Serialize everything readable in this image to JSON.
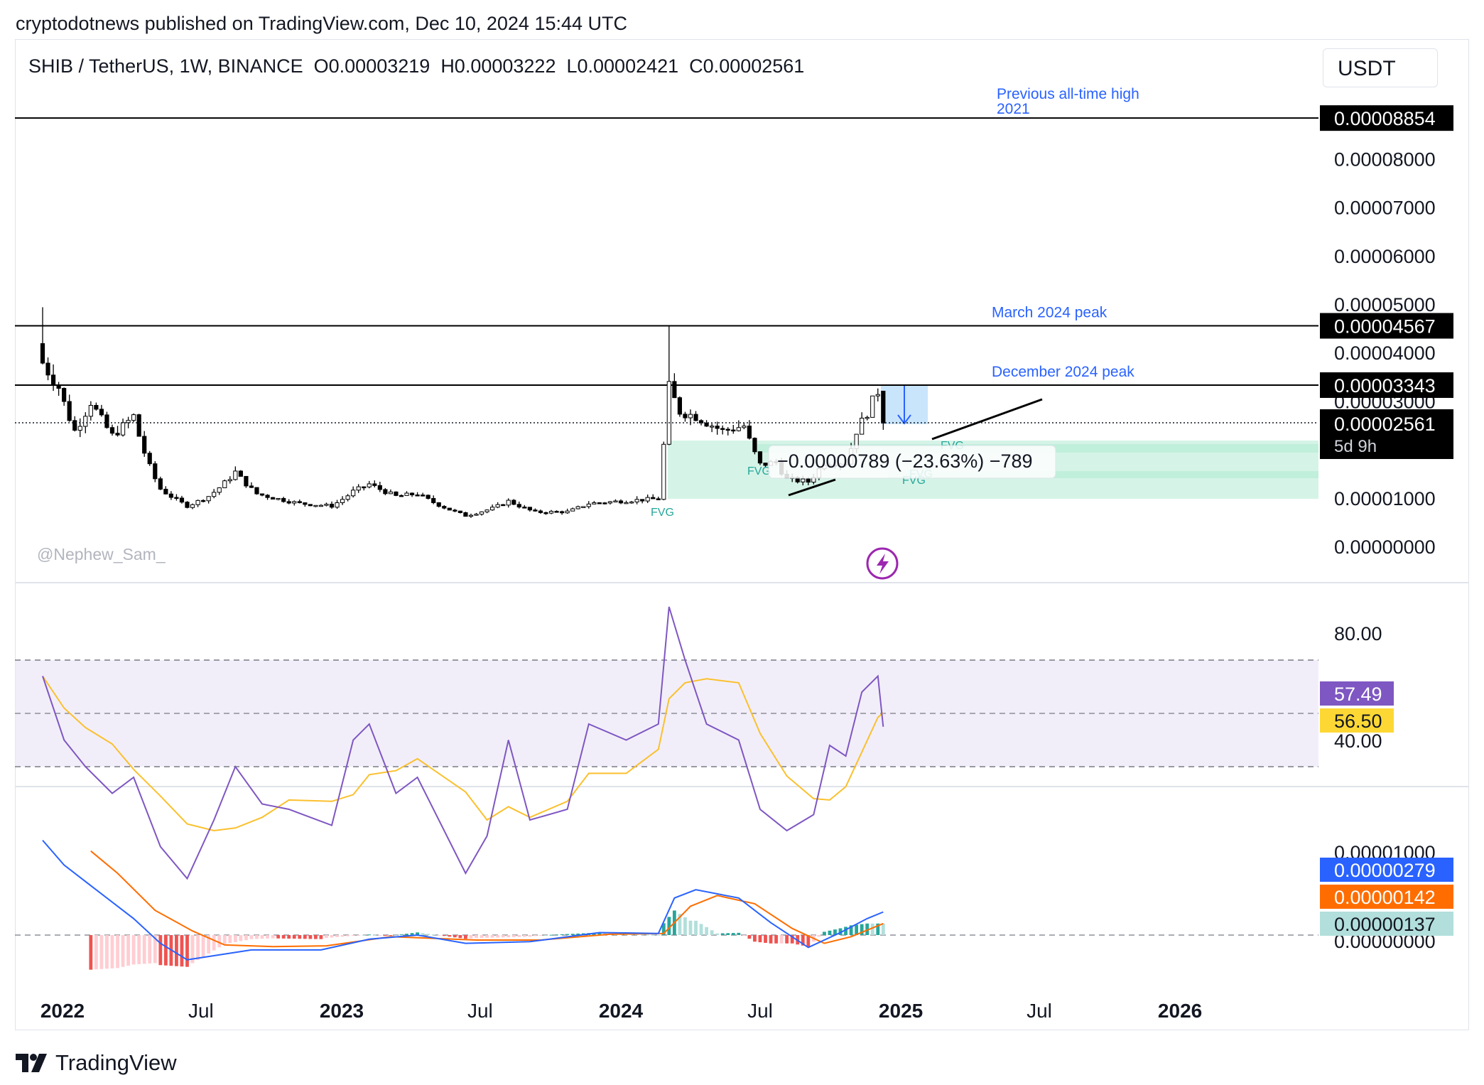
{
  "publisher_line": "cryptodotnews published on TradingView.com, Dec 10, 2024 15:44 UTC",
  "symbol": {
    "pair": "SHIB / TetherUS, 1W, BINANCE",
    "open": "O0.00003219",
    "high": "H0.00003222",
    "low": "L0.00002421",
    "close": "C0.00002561"
  },
  "currency": "USDT",
  "watermark": "@Nephew_Sam_",
  "brand": "TradingView",
  "colors": {
    "up": "#26a69a",
    "down": "#ef5350",
    "rsi": "#7e57c2",
    "rsi_ma": "#fbc02d",
    "macd": "#2962ff",
    "signal": "#ff6d00",
    "fvg": "#b2ebd4",
    "annotation": "#2962ff",
    "hist_up_strong": "#26a69a",
    "hist_up_weak": "#b2dfdb",
    "hist_down_strong": "#ef5350",
    "hist_down_weak": "#ffcdd2"
  },
  "chart_data": [
    {
      "type": "candlestick",
      "timeframe": "1W",
      "x_axis": {
        "labels": [
          "2022",
          "Jul",
          "2023",
          "Jul",
          "2024",
          "Jul",
          "2025",
          "Jul",
          "2026"
        ],
        "bold": [
          "2022",
          "2023",
          "2024",
          "2025",
          "2026"
        ]
      },
      "y_axis": {
        "ticks": [
          "0.00008000",
          "0.00007000",
          "0.00006000",
          "0.00005000",
          "0.00004000",
          "0.00003000",
          "0.00001000",
          "0.00000000"
        ]
      },
      "anchors": {
        "description": "approximate weekly close path (price in USDT)",
        "points": [
          {
            "t": "2021-12-06",
            "v": 3.8e-05
          },
          {
            "t": "2021-12-27",
            "v": 3.3e-05
          },
          {
            "t": "2022-01-17",
            "v": 2.4e-05
          },
          {
            "t": "2022-02-07",
            "v": 3e-05
          },
          {
            "t": "2022-03-07",
            "v": 2.3e-05
          },
          {
            "t": "2022-04-04",
            "v": 2.7e-05
          },
          {
            "t": "2022-05-09",
            "v": 1.2e-05
          },
          {
            "t": "2022-06-13",
            "v": 8.5e-06
          },
          {
            "t": "2022-07-11",
            "v": 1.05e-05
          },
          {
            "t": "2022-08-15",
            "v": 1.55e-05
          },
          {
            "t": "2022-09-12",
            "v": 1.1e-05
          },
          {
            "t": "2022-11-07",
            "v": 9e-06
          },
          {
            "t": "2022-12-19",
            "v": 8.5e-06
          },
          {
            "t": "2023-01-16",
            "v": 1.15e-05
          },
          {
            "t": "2023-02-06",
            "v": 1.3e-05
          },
          {
            "t": "2023-03-13",
            "v": 1.05e-05
          },
          {
            "t": "2023-04-10",
            "v": 1.1e-05
          },
          {
            "t": "2023-06-12",
            "v": 6.5e-06
          },
          {
            "t": "2023-07-17",
            "v": 8e-06
          },
          {
            "t": "2023-08-07",
            "v": 9.5e-06
          },
          {
            "t": "2023-09-11",
            "v": 7.2e-06
          },
          {
            "t": "2023-10-23",
            "v": 7.3e-06
          },
          {
            "t": "2023-11-20",
            "v": 9e-06
          },
          {
            "t": "2024-01-01",
            "v": 9.5e-06
          },
          {
            "t": "2024-02-19",
            "v": 1e-05
          },
          {
            "t": "2024-02-26",
            "v": 2.1e-05
          },
          {
            "t": "2024-03-04",
            "v": 3.3e-05
          },
          {
            "t": "2024-03-18",
            "v": 2.8e-05
          },
          {
            "t": "2024-04-08",
            "v": 2.7e-05
          },
          {
            "t": "2024-05-13",
            "v": 2.4e-05
          },
          {
            "t": "2024-06-10",
            "v": 2.5e-05
          },
          {
            "t": "2024-07-01",
            "v": 1.7e-05
          },
          {
            "t": "2024-07-22",
            "v": 1.75e-05
          },
          {
            "t": "2024-08-05",
            "v": 1.4e-05
          },
          {
            "t": "2024-09-02",
            "v": 1.35e-05
          },
          {
            "t": "2024-09-23",
            "v": 1.75e-05
          },
          {
            "t": "2024-10-21",
            "v": 1.75e-05
          },
          {
            "t": "2024-11-04",
            "v": 2.4e-05
          },
          {
            "t": "2024-11-25",
            "v": 3e-05
          },
          {
            "t": "2024-12-02",
            "v": 3.22e-05
          },
          {
            "t": "2024-12-09",
            "v": 2.56e-05
          }
        ]
      },
      "levels": [
        {
          "price": "0.00008854",
          "label_lines": [
            "Previous all-time high",
            "2021"
          ]
        },
        {
          "price": "0.00004567",
          "label_lines": [
            "March 2024 peak"
          ]
        },
        {
          "price": "0.00003343",
          "label_lines": [
            "December 2024 peak"
          ]
        }
      ],
      "last_price": "0.00002561",
      "countdown": "5d 9h",
      "measure_label": "−0.00000789 (−23.63%) −789",
      "fvg_label": "FVG"
    },
    {
      "type": "line",
      "name": "RSI",
      "y_axis": {
        "ticks": [
          "80.00",
          "40.00"
        ],
        "bands": [
          70,
          50,
          30
        ]
      },
      "values": {
        "rsi": "57.49",
        "rsi_ma": "56.50"
      }
    },
    {
      "type": "line+histogram",
      "name": "MACD",
      "y_axis": {
        "ticks": [
          "0.00001000",
          "0.00000000"
        ]
      },
      "values": {
        "macd": "0.00000279",
        "signal": "0.00000142",
        "histogram": "0.00000137"
      }
    }
  ]
}
